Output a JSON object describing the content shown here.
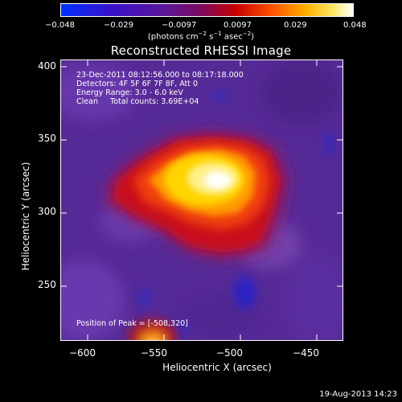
{
  "colorbar": {
    "ticks": [
      "−0.048",
      "−0.029",
      "−0.0097",
      "0.0097",
      "0.029",
      "0.048"
    ],
    "label_main": "(photons cm",
    "label_exp1": "−2",
    "label_mid1": " s",
    "label_exp2": "−1",
    "label_mid2": " asec",
    "label_exp3": "−2",
    "label_end": ")"
  },
  "title": "Reconstructed RHESSI Image",
  "info": {
    "line1": "23-Dec-2011 08:12:56.000 to 08:17:18.000",
    "line2": "Detectors: 4F 5F 6F 7F 8F, Att 0",
    "line3": "Energy Range: 3.0 - 6.0 keV",
    "line4": "Clean     Total counts: 3.69E+04",
    "peak": "Position of Peak = [-508,320]"
  },
  "axes": {
    "xlabel": "Heliocentric X (arcsec)",
    "ylabel": "Heliocentric Y (arcsec)",
    "xticks": [
      "−600",
      "−550",
      "−500",
      "−450"
    ],
    "yticks": [
      "400",
      "350",
      "300",
      "250"
    ],
    "xlim": [
      -612,
      -426
    ],
    "ylim": [
      210,
      405
    ]
  },
  "footer": {
    "date": "19-Aug-2013 14:23"
  },
  "colors": {
    "hot_high": "#ffffff",
    "hot_mid": "#ffd000",
    "hot_low": "#d01000",
    "bg": "#5a2a9a",
    "neg": "#2a20c8"
  }
}
